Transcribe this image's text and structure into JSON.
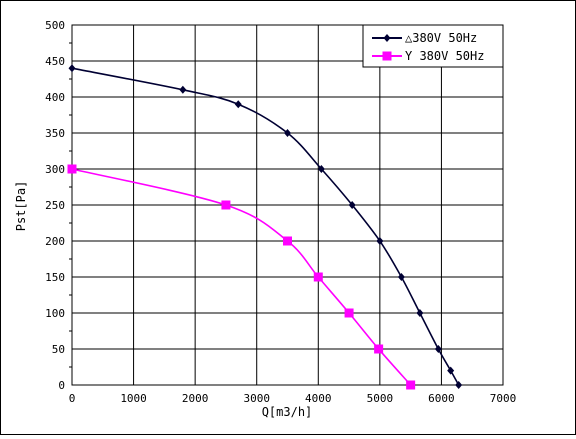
{
  "chart_data": {
    "type": "line",
    "xlabel": "Q[m3/h]",
    "ylabel": "Pst[Pa]",
    "xlim": [
      0,
      7000
    ],
    "ylim": [
      0,
      500
    ],
    "x_ticks": [
      "0",
      "1000",
      "2000",
      "3000",
      "4000",
      "5000",
      "6000",
      "7000"
    ],
    "y_ticks": [
      "0",
      "50",
      "100",
      "150",
      "200",
      "250",
      "300",
      "350",
      "400",
      "450",
      "500"
    ],
    "grid": true,
    "legend_position": "top-right",
    "series": [
      {
        "name": "△380V 50Hz",
        "color": "#000033",
        "marker": "diamond",
        "x": [
          0,
          1800,
          2700,
          3500,
          4050,
          4550,
          5000,
          5350,
          5650,
          5950,
          6150,
          6280
        ],
        "y": [
          440,
          410,
          390,
          350,
          300,
          250,
          200,
          150,
          100,
          50,
          20,
          0
        ]
      },
      {
        "name": "Y 380V 50Hz",
        "color": "#ff00ff",
        "marker": "square",
        "x": [
          0,
          2500,
          3500,
          4000,
          4500,
          4980,
          5500
        ],
        "y": [
          300,
          250,
          200,
          150,
          100,
          50,
          0
        ]
      }
    ]
  }
}
